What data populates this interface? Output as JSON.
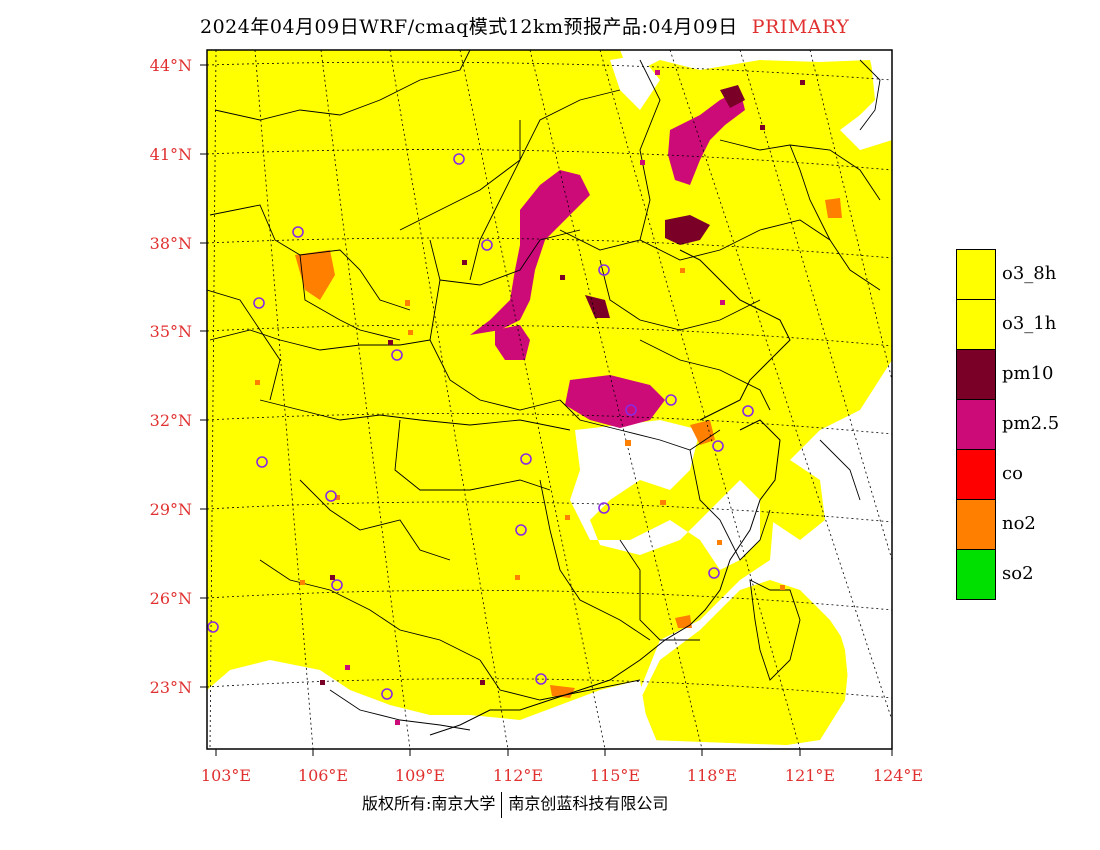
{
  "title": {
    "main": "2024年04月09日WRF/cmaq模式12km预报产品:04月09日",
    "tag": "PRIMARY"
  },
  "footer": {
    "left": "版权所有:南京大学",
    "right": "南京创蓝科技有限公司"
  },
  "axes": {
    "lat_labels": [
      "44°N",
      "41°N",
      "38°N",
      "35°N",
      "32°N",
      "29°N",
      "26°N",
      "23°N"
    ],
    "lon_labels": [
      "103°E",
      "106°E",
      "109°E",
      "112°E",
      "115°E",
      "118°E",
      "121°E",
      "124°E"
    ]
  },
  "legend": [
    {
      "label": "o3_8h",
      "color": "#ffff00"
    },
    {
      "label": "o3_1h",
      "color": "#ffff00"
    },
    {
      "label": "pm10",
      "color": "#7a0028"
    },
    {
      "label": "pm2.5",
      "color": "#cc0a78"
    },
    {
      "label": "co",
      "color": "#ff0000"
    },
    {
      "label": "no2",
      "color": "#ff7f00"
    },
    {
      "label": "so2",
      "color": "#00e000"
    }
  ],
  "colors": {
    "o3": "#ffff00",
    "pm10": "#7a0028",
    "pm25": "#cc0a78",
    "no2": "#ff7f00",
    "station": "#8a2be2",
    "label": "#e03030"
  }
}
